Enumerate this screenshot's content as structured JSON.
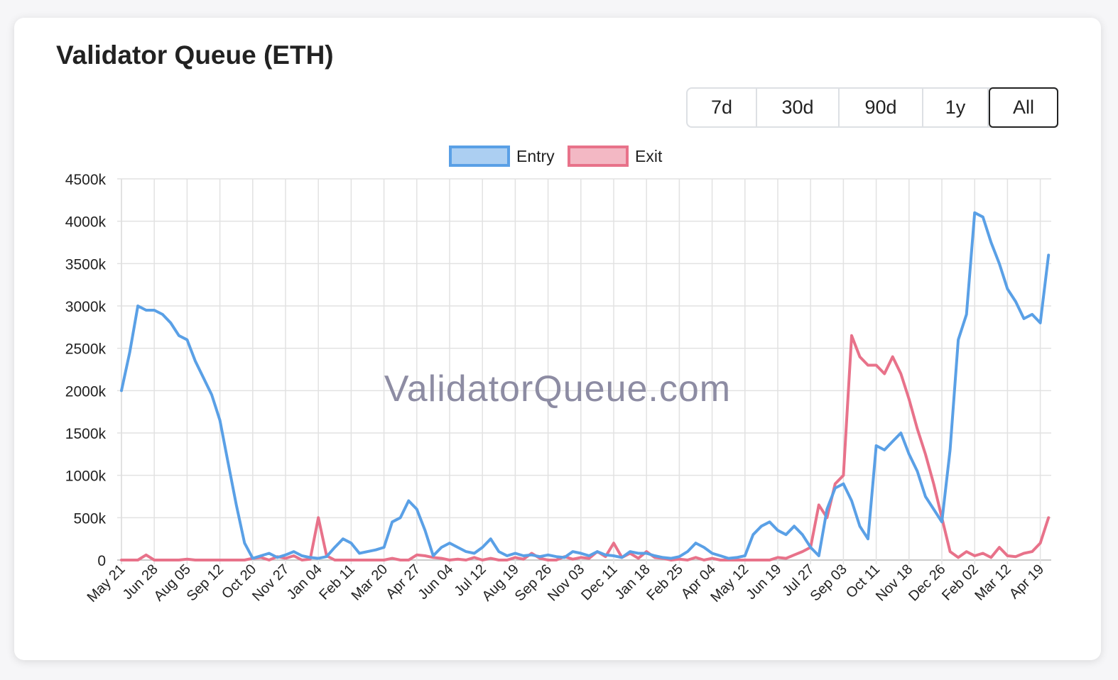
{
  "chart_data": {
    "type": "line",
    "title": "Validator Queue (ETH)",
    "watermark": "ValidatorQueue.com",
    "controls": {
      "buttons": [
        "7d",
        "30d",
        "90d",
        "1y",
        "All"
      ],
      "selected": 4
    },
    "legend": "top",
    "grid": true,
    "categories": [
      "May 21",
      null,
      null,
      null,
      "Jun 28",
      null,
      null,
      null,
      "Aug 05",
      null,
      null,
      null,
      "Sep 12",
      null,
      null,
      null,
      "Oct 20",
      null,
      null,
      null,
      "Nov 27",
      null,
      null,
      null,
      "Jan 04",
      null,
      null,
      null,
      "Feb 11",
      null,
      null,
      null,
      "Mar 20",
      null,
      null,
      null,
      "Apr 27",
      null,
      null,
      null,
      "Jun 04",
      null,
      null,
      null,
      "Jul 12",
      null,
      null,
      null,
      "Aug 19",
      null,
      null,
      null,
      "Sep 26",
      null,
      null,
      null,
      "Nov 03",
      null,
      null,
      null,
      "Dec 11",
      null,
      null,
      null,
      "Jan 18",
      null,
      null,
      null,
      "Feb 25",
      null,
      null,
      null,
      "Apr 04",
      null,
      null,
      null,
      "May 12",
      null,
      null,
      null,
      "Jun 19",
      null,
      null,
      null,
      "Jul 27",
      null,
      null,
      null,
      "Sep 03",
      null,
      null,
      null,
      "Oct 11",
      null,
      null,
      null,
      "Nov 18",
      null,
      null,
      null,
      "Dec 26",
      null,
      null,
      null,
      "Feb 02",
      null,
      null,
      null,
      "Mar 12",
      null,
      null,
      null,
      "Apr 19",
      null
    ],
    "series": [
      {
        "name": "Entry",
        "color": "#5aa0e6",
        "values": [
          2000000,
          2450000,
          3000000,
          2950000,
          2950000,
          2900000,
          2800000,
          2650000,
          2600000,
          2350000,
          2150000,
          1950000,
          1650000,
          1150000,
          650000,
          200000,
          20000,
          50000,
          80000,
          30000,
          60000,
          100000,
          50000,
          30000,
          20000,
          40000,
          150000,
          250000,
          200000,
          80000,
          100000,
          120000,
          150000,
          450000,
          500000,
          700000,
          600000,
          350000,
          50000,
          150000,
          200000,
          150000,
          100000,
          80000,
          150000,
          250000,
          100000,
          50000,
          80000,
          50000,
          60000,
          40000,
          60000,
          40000,
          30000,
          100000,
          80000,
          50000,
          100000,
          60000,
          50000,
          30000,
          100000,
          80000,
          80000,
          50000,
          30000,
          20000,
          40000,
          100000,
          200000,
          150000,
          80000,
          50000,
          20000,
          30000,
          50000,
          300000,
          400000,
          450000,
          350000,
          300000,
          400000,
          300000,
          150000,
          50000,
          600000,
          850000,
          900000,
          700000,
          400000,
          250000,
          1350000,
          1300000,
          1400000,
          1500000,
          1250000,
          1050000,
          750000,
          600000,
          450000,
          1300000,
          2600000,
          2900000,
          4100000,
          4050000,
          3750000,
          3500000,
          3200000,
          3050000,
          2850000,
          2900000,
          2800000,
          3600000
        ]
      },
      {
        "name": "Exit",
        "color": "#e8728a",
        "values": [
          0,
          0,
          0,
          60000,
          0,
          0,
          0,
          0,
          10000,
          0,
          0,
          0,
          0,
          0,
          0,
          0,
          20000,
          30000,
          0,
          40000,
          20000,
          50000,
          0,
          10000,
          500000,
          50000,
          0,
          0,
          0,
          0,
          0,
          0,
          0,
          20000,
          0,
          0,
          60000,
          50000,
          30000,
          20000,
          0,
          10000,
          0,
          30000,
          0,
          20000,
          0,
          0,
          30000,
          10000,
          80000,
          20000,
          0,
          0,
          40000,
          10000,
          30000,
          20000,
          100000,
          40000,
          200000,
          30000,
          80000,
          20000,
          100000,
          30000,
          20000,
          0,
          10000,
          0,
          30000,
          0,
          20000,
          0,
          0,
          0,
          0,
          0,
          0,
          0,
          30000,
          20000,
          60000,
          100000,
          150000,
          650000,
          500000,
          900000,
          1000000,
          2650000,
          2400000,
          2300000,
          2300000,
          2200000,
          2400000,
          2200000,
          1900000,
          1550000,
          1250000,
          900000,
          500000,
          100000,
          30000,
          100000,
          50000,
          80000,
          30000,
          150000,
          50000,
          40000,
          80000,
          100000,
          200000,
          500000
        ]
      }
    ],
    "ylim": [
      0,
      4500000
    ],
    "yticks": [
      {
        "value": 0,
        "label": "0"
      },
      {
        "value": 500000,
        "label": "500k"
      },
      {
        "value": 1000000,
        "label": "1000k"
      },
      {
        "value": 1500000,
        "label": "1500k"
      },
      {
        "value": 2000000,
        "label": "2000k"
      },
      {
        "value": 2500000,
        "label": "2500k"
      },
      {
        "value": 3000000,
        "label": "3000k"
      },
      {
        "value": 3500000,
        "label": "3500k"
      },
      {
        "value": 4000000,
        "label": "4000k"
      },
      {
        "value": 4500000,
        "label": "4500k"
      }
    ]
  }
}
